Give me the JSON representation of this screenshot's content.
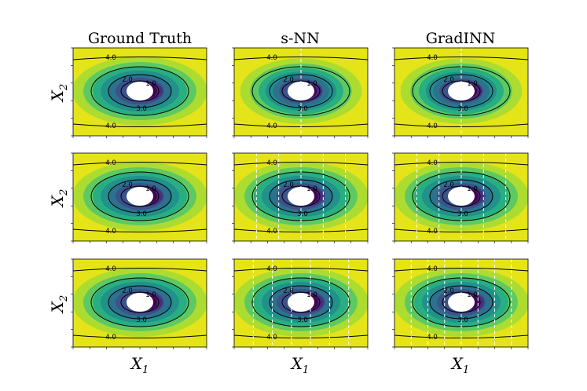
{
  "chart_data": {
    "type": "contour-grid",
    "columns": [
      "Ground Truth",
      "s-NN",
      "GradINN"
    ],
    "rows": 3,
    "xlabel_main": "X",
    "xlabel_sub": "1",
    "ylabel_main": "X",
    "ylabel_sub": "2",
    "contour_levels": [
      "1.0",
      "2.0",
      "3.0",
      "4.0"
    ],
    "colormap": [
      "#440154",
      "#472d7b",
      "#3b528b",
      "#2c728e",
      "#21918c",
      "#28ae80",
      "#5ec962",
      "#addc30",
      "#e4e419"
    ],
    "vertical_dashed_lines": {
      "row1": {
        "s-NN": 1,
        "GradINN": 1
      },
      "row2": {
        "s-NN": 5,
        "GradINN": 5
      },
      "row3": {
        "s-NN": 6,
        "GradINN": 7
      }
    },
    "grid": false
  }
}
